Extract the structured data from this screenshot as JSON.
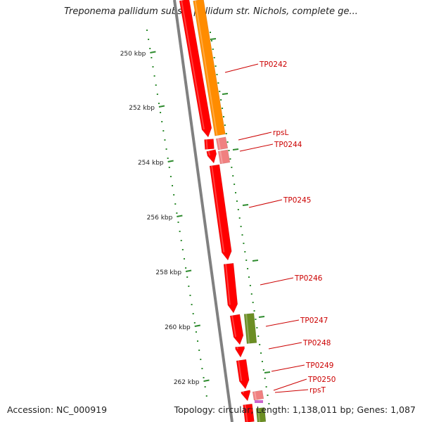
{
  "title": "Treponema pallidum subsp. pallidum str. Nichols, complete ge...",
  "footer": {
    "accession": "Accession: NC_000919",
    "summary": "Topology: circular; Length: 1,138,011 bp; Genes: 1,087"
  },
  "ticks": [
    {
      "label": "250 kbp"
    },
    {
      "label": "252 kbp"
    },
    {
      "label": "254 kbp"
    },
    {
      "label": "256 kbp"
    },
    {
      "label": "258 kbp"
    },
    {
      "label": "260 kbp"
    },
    {
      "label": "262 kbp"
    }
  ],
  "genes": [
    {
      "label": "TP0242",
      "color": "#ff8c00"
    },
    {
      "label": "rpsL",
      "color": "#f08080"
    },
    {
      "label": "TP0244",
      "color": "#f08080"
    },
    {
      "label": "TP0245",
      "color": "#ff0000"
    },
    {
      "label": "TP0246",
      "color": "#ff0000"
    },
    {
      "label": "TP0247",
      "color": "#6b8e23"
    },
    {
      "label": "TP0248",
      "color": "#ff0000"
    },
    {
      "label": "TP0249",
      "color": "#ff0000"
    },
    {
      "label": "TP0250",
      "color": "#f08080"
    },
    {
      "label": "rpsT",
      "color": "#f08080"
    }
  ],
  "colors": {
    "backbone": "#808080",
    "tick": "#2e8b2e",
    "label_text": "#cc0000",
    "cds_forward": "#ff0000",
    "cds_orange": "#ff8c00",
    "rna_pink": "#f08080",
    "olive": "#6b8e23"
  }
}
